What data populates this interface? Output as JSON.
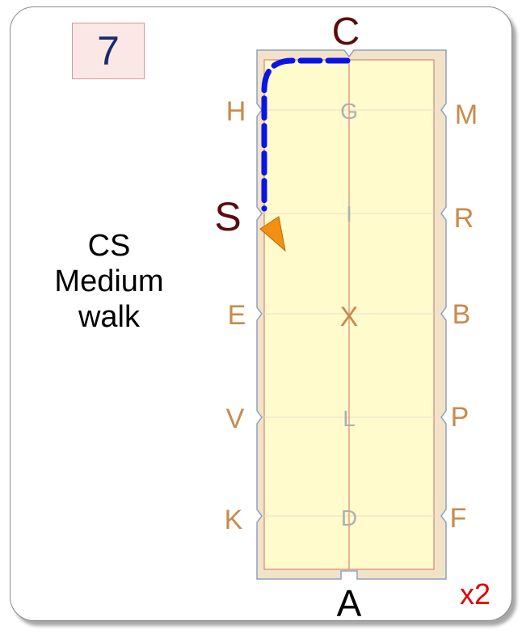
{
  "movement_number": "7",
  "description": {
    "line1": "CS",
    "line2": "Medium",
    "line3": "walk"
  },
  "repeat": "x2",
  "letters": {
    "top": "C",
    "bottom": "A",
    "left": [
      "H",
      "S",
      "E",
      "V",
      "K"
    ],
    "right": [
      "M",
      "R",
      "B",
      "P",
      "F"
    ],
    "center": [
      "G",
      "I",
      "X",
      "L",
      "D"
    ]
  },
  "colors": {
    "arena_fill": "#fffbcc",
    "arena_border": "#f2e3c8",
    "center_line": "#d9857a",
    "path": "#0a14e6",
    "arrow": "#f39012",
    "side_letters": "#c98a4a",
    "center_letters": "#b0b0b0",
    "start_letter": "#5a0d0d",
    "end_letters": "#5a0d0d",
    "repeat": "#e00000"
  }
}
